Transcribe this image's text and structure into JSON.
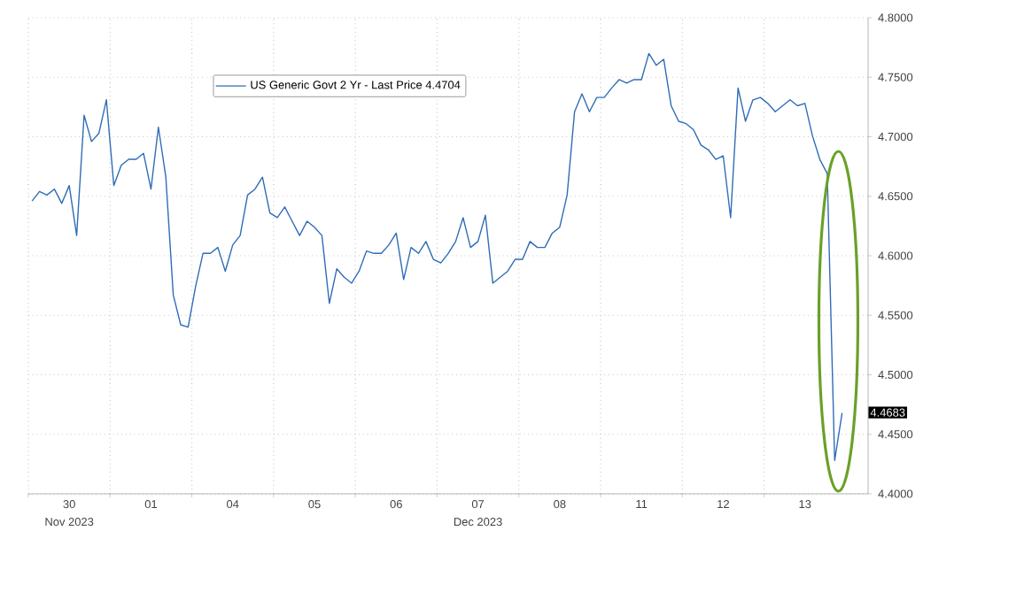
{
  "chart_data": {
    "type": "line",
    "categories": [
      null,
      null,
      null,
      null,
      null,
      "30",
      null,
      null,
      null,
      null,
      null,
      null,
      null,
      null,
      null,
      null,
      "01",
      null,
      null,
      null,
      null,
      null,
      null,
      null,
      null,
      null,
      null,
      "04",
      null,
      null,
      null,
      null,
      null,
      null,
      null,
      null,
      null,
      null,
      "05",
      null,
      null,
      null,
      null,
      null,
      null,
      null,
      null,
      null,
      null,
      "06",
      null,
      null,
      null,
      null,
      null,
      null,
      null,
      null,
      null,
      null,
      "07",
      null,
      null,
      null,
      null,
      null,
      null,
      null,
      null,
      null,
      null,
      "08",
      null,
      null,
      null,
      null,
      null,
      null,
      null,
      null,
      null,
      null,
      "11",
      null,
      null,
      null,
      null,
      null,
      null,
      null,
      null,
      null,
      null,
      "12",
      null,
      null,
      null,
      null,
      null,
      null,
      null,
      null,
      null,
      null,
      "13",
      null,
      null,
      null,
      null,
      null,
      null,
      null,
      null
    ],
    "ylim": [
      4.4,
      4.8
    ],
    "yticks": [
      {
        "value": 4.4,
        "label": "4.4000"
      },
      {
        "value": 4.45,
        "label": "4.4500"
      },
      {
        "value": 4.5,
        "label": "4.5000"
      },
      {
        "value": 4.55,
        "label": "4.5500"
      },
      {
        "value": 4.6,
        "label": "4.6000"
      },
      {
        "value": 4.65,
        "label": "4.6500"
      },
      {
        "value": 4.7,
        "label": "4.7000"
      },
      {
        "value": 4.75,
        "label": "4.7500"
      },
      {
        "value": 4.8,
        "label": "4.8000"
      }
    ],
    "grid": true,
    "legend": "top left",
    "marker": "none",
    "line_style": "solid",
    "series": [
      {
        "name": "US Generic Govt 2 Yr - Last Price 4.4704",
        "color": "#2f6db5",
        "values": [
          4.646,
          4.654,
          4.651,
          4.656,
          4.644,
          4.659,
          4.617,
          4.718,
          4.696,
          4.703,
          4.731,
          4.659,
          4.676,
          4.681,
          4.681,
          4.686,
          4.656,
          4.708,
          4.666,
          4.567,
          4.542,
          4.54,
          4.574,
          4.602,
          4.602,
          4.607,
          4.587,
          4.609,
          4.617,
          4.651,
          4.656,
          4.666,
          4.636,
          4.632,
          4.641,
          4.629,
          4.617,
          4.629,
          4.624,
          4.617,
          4.56,
          4.589,
          4.582,
          4.577,
          4.587,
          4.604,
          4.602,
          4.602,
          4.609,
          4.619,
          4.58,
          4.607,
          4.602,
          4.612,
          4.597,
          4.594,
          4.602,
          4.612,
          4.632,
          4.607,
          4.612,
          4.634,
          4.577,
          4.582,
          4.587,
          4.597,
          4.597,
          4.612,
          4.607,
          4.607,
          4.619,
          4.624,
          4.651,
          4.721,
          4.736,
          4.721,
          4.733,
          4.733,
          4.741,
          4.748,
          4.745,
          4.748,
          4.748,
          4.77,
          4.76,
          4.765,
          4.726,
          4.713,
          4.711,
          4.706,
          4.693,
          4.689,
          4.681,
          4.684,
          4.632,
          4.741,
          4.713,
          4.731,
          4.733,
          4.728,
          4.721,
          4.726,
          4.731,
          4.726,
          4.728,
          4.701,
          4.681,
          4.669,
          4.428,
          4.468,
          null,
          null,
          null
        ]
      }
    ],
    "annotations": [
      {
        "text": "4.4683",
        "y": 4.4683
      },
      "Nov 2023",
      "Dec 2023"
    ]
  }
}
